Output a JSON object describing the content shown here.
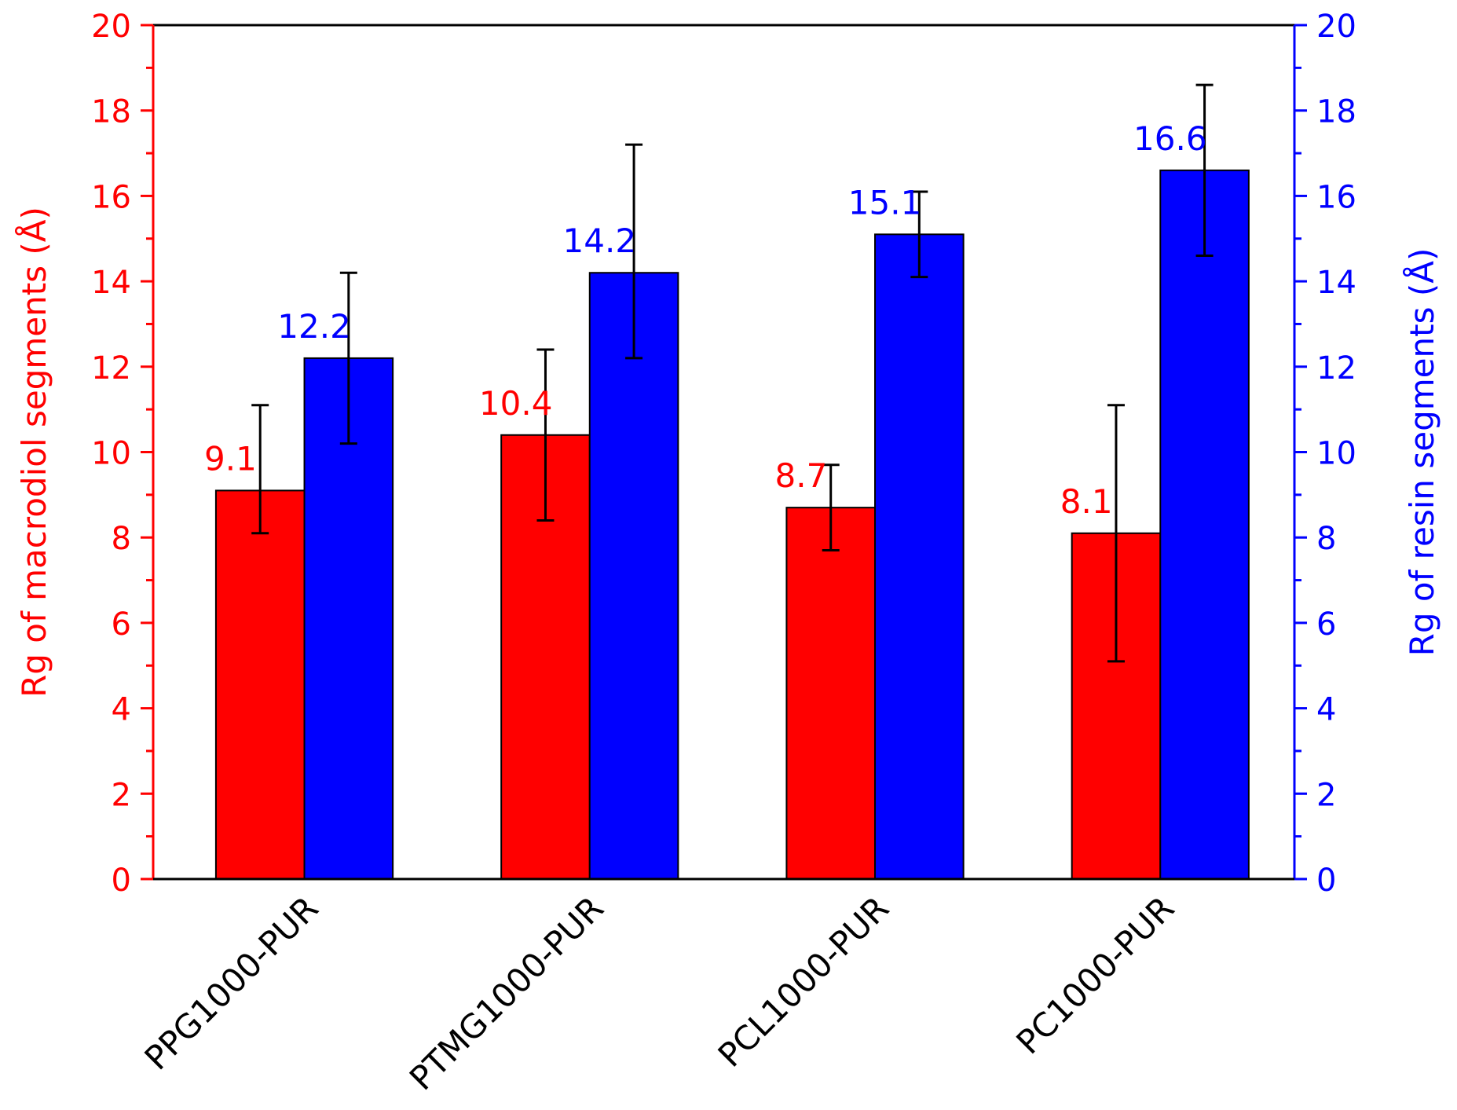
{
  "chart_data": {
    "type": "bar",
    "categories": [
      "PPG1000-PUR",
      "PTMG1000-PUR",
      "PCL1000-PUR",
      "PC1000-PUR"
    ],
    "series": [
      {
        "name": "Rg of macrodiol segments",
        "axis": "left",
        "color": "#ff0000",
        "values": [
          9.1,
          10.4,
          8.7,
          8.1
        ],
        "error_low": [
          8.1,
          8.4,
          7.7,
          5.1
        ],
        "error_high": [
          11.1,
          12.4,
          9.7,
          11.1
        ],
        "labels": [
          "9.1",
          "10.4",
          "8.7",
          "8.1"
        ]
      },
      {
        "name": "Rg of resin segments",
        "axis": "right",
        "color": "#0000ff",
        "values": [
          12.2,
          14.2,
          15.1,
          16.6
        ],
        "error_low": [
          10.2,
          12.2,
          14.1,
          14.6
        ],
        "error_high": [
          14.2,
          17.2,
          16.1,
          18.6
        ],
        "labels": [
          "12.2",
          "14.2",
          "15.1",
          "16.6"
        ]
      }
    ],
    "left_axis": {
      "label": "Rg of macrodiol segments (Å)",
      "color": "#ff0000",
      "ylim": [
        0,
        20
      ],
      "ticks": [
        "0",
        "2",
        "4",
        "6",
        "8",
        "10",
        "12",
        "14",
        "16",
        "18",
        "20"
      ]
    },
    "right_axis": {
      "label": "Rg of resin segments (Å)",
      "color": "#0000ff",
      "ylim": [
        0,
        20
      ],
      "ticks": [
        "0",
        "2",
        "4",
        "6",
        "8",
        "10",
        "12",
        "14",
        "16",
        "18",
        "20"
      ]
    },
    "xlabel": "",
    "title": "",
    "grid": false
  }
}
